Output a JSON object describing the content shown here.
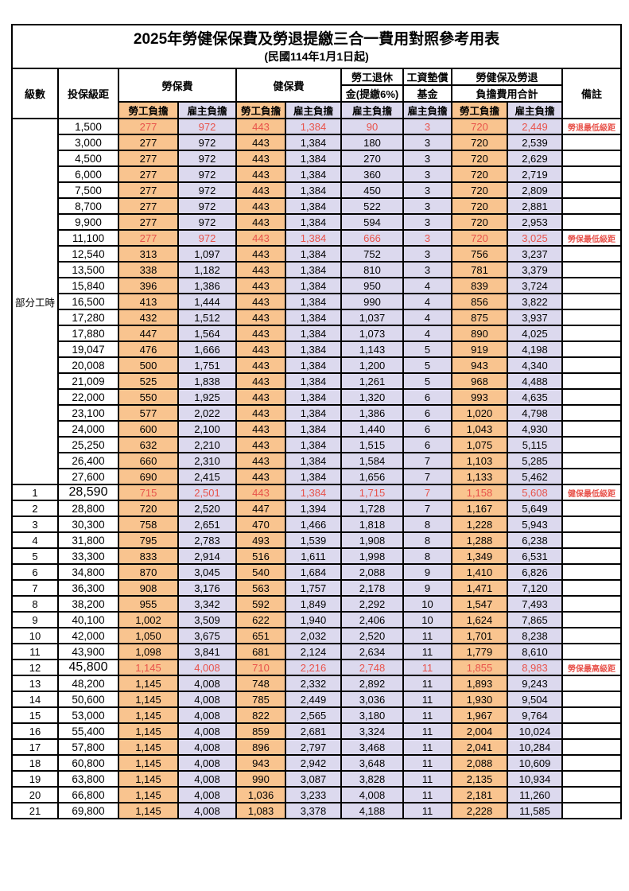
{
  "title": "2025年勞健保保費及勞退提繳三合一費用對照參考用表",
  "subtitle": "(民國114年1月1日起)",
  "columns": {
    "level": "級數",
    "bracket": "投保級距",
    "labor_insurance": "勞保費",
    "health_insurance": "健保費",
    "pension_line1": "勞工退休",
    "pension_line2": "金(提繳6%)",
    "wage_fund_line1": "工資墊償",
    "wage_fund_line2": "基金",
    "total_line1": "勞健保及勞退",
    "total_line2": "負擔費用合計",
    "remark": "備註",
    "employee": "勞工負擔",
    "employer": "雇主負擔"
  },
  "part_time_label": "部分工時",
  "part_time_span": 23,
  "colors": {
    "employee_bg": "#f9c48f",
    "employer_bg": "#dcd9ee",
    "highlight_text": "#e8534b",
    "border": "#000000"
  },
  "rows": [
    {
      "level": null,
      "bracket": "1,500",
      "li_emp": "277",
      "li_er": "972",
      "hi_emp": "443",
      "hi_er": "1,384",
      "pension": "90",
      "fund": "3",
      "total_emp": "720",
      "total_er": "2,449",
      "remark": "勞退最低級距",
      "highlight": true,
      "big": false
    },
    {
      "level": null,
      "bracket": "3,000",
      "li_emp": "277",
      "li_er": "972",
      "hi_emp": "443",
      "hi_er": "1,384",
      "pension": "180",
      "fund": "3",
      "total_emp": "720",
      "total_er": "2,539",
      "remark": "",
      "highlight": false,
      "big": false
    },
    {
      "level": null,
      "bracket": "4,500",
      "li_emp": "277",
      "li_er": "972",
      "hi_emp": "443",
      "hi_er": "1,384",
      "pension": "270",
      "fund": "3",
      "total_emp": "720",
      "total_er": "2,629",
      "remark": "",
      "highlight": false,
      "big": false
    },
    {
      "level": null,
      "bracket": "6,000",
      "li_emp": "277",
      "li_er": "972",
      "hi_emp": "443",
      "hi_er": "1,384",
      "pension": "360",
      "fund": "3",
      "total_emp": "720",
      "total_er": "2,719",
      "remark": "",
      "highlight": false,
      "big": false
    },
    {
      "level": null,
      "bracket": "7,500",
      "li_emp": "277",
      "li_er": "972",
      "hi_emp": "443",
      "hi_er": "1,384",
      "pension": "450",
      "fund": "3",
      "total_emp": "720",
      "total_er": "2,809",
      "remark": "",
      "highlight": false,
      "big": false
    },
    {
      "level": null,
      "bracket": "8,700",
      "li_emp": "277",
      "li_er": "972",
      "hi_emp": "443",
      "hi_er": "1,384",
      "pension": "522",
      "fund": "3",
      "total_emp": "720",
      "total_er": "2,881",
      "remark": "",
      "highlight": false,
      "big": false
    },
    {
      "level": null,
      "bracket": "9,900",
      "li_emp": "277",
      "li_er": "972",
      "hi_emp": "443",
      "hi_er": "1,384",
      "pension": "594",
      "fund": "3",
      "total_emp": "720",
      "total_er": "2,953",
      "remark": "",
      "highlight": false,
      "big": false
    },
    {
      "level": null,
      "bracket": "11,100",
      "li_emp": "277",
      "li_er": "972",
      "hi_emp": "443",
      "hi_er": "1,384",
      "pension": "666",
      "fund": "3",
      "total_emp": "720",
      "total_er": "3,025",
      "remark": "勞保最低級距",
      "highlight": true,
      "big": false
    },
    {
      "level": null,
      "bracket": "12,540",
      "li_emp": "313",
      "li_er": "1,097",
      "hi_emp": "443",
      "hi_er": "1,384",
      "pension": "752",
      "fund": "3",
      "total_emp": "756",
      "total_er": "3,237",
      "remark": "",
      "highlight": false,
      "big": false
    },
    {
      "level": null,
      "bracket": "13,500",
      "li_emp": "338",
      "li_er": "1,182",
      "hi_emp": "443",
      "hi_er": "1,384",
      "pension": "810",
      "fund": "3",
      "total_emp": "781",
      "total_er": "3,379",
      "remark": "",
      "highlight": false,
      "big": false
    },
    {
      "level": null,
      "bracket": "15,840",
      "li_emp": "396",
      "li_er": "1,386",
      "hi_emp": "443",
      "hi_er": "1,384",
      "pension": "950",
      "fund": "4",
      "total_emp": "839",
      "total_er": "3,724",
      "remark": "",
      "highlight": false,
      "big": false
    },
    {
      "level": null,
      "bracket": "16,500",
      "li_emp": "413",
      "li_er": "1,444",
      "hi_emp": "443",
      "hi_er": "1,384",
      "pension": "990",
      "fund": "4",
      "total_emp": "856",
      "total_er": "3,822",
      "remark": "",
      "highlight": false,
      "big": false
    },
    {
      "level": null,
      "bracket": "17,280",
      "li_emp": "432",
      "li_er": "1,512",
      "hi_emp": "443",
      "hi_er": "1,384",
      "pension": "1,037",
      "fund": "4",
      "total_emp": "875",
      "total_er": "3,937",
      "remark": "",
      "highlight": false,
      "big": false
    },
    {
      "level": null,
      "bracket": "17,880",
      "li_emp": "447",
      "li_er": "1,564",
      "hi_emp": "443",
      "hi_er": "1,384",
      "pension": "1,073",
      "fund": "4",
      "total_emp": "890",
      "total_er": "4,025",
      "remark": "",
      "highlight": false,
      "big": false
    },
    {
      "level": null,
      "bracket": "19,047",
      "li_emp": "476",
      "li_er": "1,666",
      "hi_emp": "443",
      "hi_er": "1,384",
      "pension": "1,143",
      "fund": "5",
      "total_emp": "919",
      "total_er": "4,198",
      "remark": "",
      "highlight": false,
      "big": false
    },
    {
      "level": null,
      "bracket": "20,008",
      "li_emp": "500",
      "li_er": "1,751",
      "hi_emp": "443",
      "hi_er": "1,384",
      "pension": "1,200",
      "fund": "5",
      "total_emp": "943",
      "total_er": "4,340",
      "remark": "",
      "highlight": false,
      "big": false
    },
    {
      "level": null,
      "bracket": "21,009",
      "li_emp": "525",
      "li_er": "1,838",
      "hi_emp": "443",
      "hi_er": "1,384",
      "pension": "1,261",
      "fund": "5",
      "total_emp": "968",
      "total_er": "4,488",
      "remark": "",
      "highlight": false,
      "big": false
    },
    {
      "level": null,
      "bracket": "22,000",
      "li_emp": "550",
      "li_er": "1,925",
      "hi_emp": "443",
      "hi_er": "1,384",
      "pension": "1,320",
      "fund": "6",
      "total_emp": "993",
      "total_er": "4,635",
      "remark": "",
      "highlight": false,
      "big": false
    },
    {
      "level": null,
      "bracket": "23,100",
      "li_emp": "577",
      "li_er": "2,022",
      "hi_emp": "443",
      "hi_er": "1,384",
      "pension": "1,386",
      "fund": "6",
      "total_emp": "1,020",
      "total_er": "4,798",
      "remark": "",
      "highlight": false,
      "big": false
    },
    {
      "level": null,
      "bracket": "24,000",
      "li_emp": "600",
      "li_er": "2,100",
      "hi_emp": "443",
      "hi_er": "1,384",
      "pension": "1,440",
      "fund": "6",
      "total_emp": "1,043",
      "total_er": "4,930",
      "remark": "",
      "highlight": false,
      "big": false
    },
    {
      "level": null,
      "bracket": "25,250",
      "li_emp": "632",
      "li_er": "2,210",
      "hi_emp": "443",
      "hi_er": "1,384",
      "pension": "1,515",
      "fund": "6",
      "total_emp": "1,075",
      "total_er": "5,115",
      "remark": "",
      "highlight": false,
      "big": false
    },
    {
      "level": null,
      "bracket": "26,400",
      "li_emp": "660",
      "li_er": "2,310",
      "hi_emp": "443",
      "hi_er": "1,384",
      "pension": "1,584",
      "fund": "7",
      "total_emp": "1,103",
      "total_er": "5,285",
      "remark": "",
      "highlight": false,
      "big": false
    },
    {
      "level": null,
      "bracket": "27,600",
      "li_emp": "690",
      "li_er": "2,415",
      "hi_emp": "443",
      "hi_er": "1,384",
      "pension": "1,656",
      "fund": "7",
      "total_emp": "1,133",
      "total_er": "5,462",
      "remark": "",
      "highlight": false,
      "big": false
    },
    {
      "level": "1",
      "bracket": "28,590",
      "li_emp": "715",
      "li_er": "2,501",
      "hi_emp": "443",
      "hi_er": "1,384",
      "pension": "1,715",
      "fund": "7",
      "total_emp": "1,158",
      "total_er": "5,608",
      "remark": "健保最低級距",
      "highlight": true,
      "big": true
    },
    {
      "level": "2",
      "bracket": "28,800",
      "li_emp": "720",
      "li_er": "2,520",
      "hi_emp": "447",
      "hi_er": "1,394",
      "pension": "1,728",
      "fund": "7",
      "total_emp": "1,167",
      "total_er": "5,649",
      "remark": "",
      "highlight": false,
      "big": false
    },
    {
      "level": "3",
      "bracket": "30,300",
      "li_emp": "758",
      "li_er": "2,651",
      "hi_emp": "470",
      "hi_er": "1,466",
      "pension": "1,818",
      "fund": "8",
      "total_emp": "1,228",
      "total_er": "5,943",
      "remark": "",
      "highlight": false,
      "big": false
    },
    {
      "level": "4",
      "bracket": "31,800",
      "li_emp": "795",
      "li_er": "2,783",
      "hi_emp": "493",
      "hi_er": "1,539",
      "pension": "1,908",
      "fund": "8",
      "total_emp": "1,288",
      "total_er": "6,238",
      "remark": "",
      "highlight": false,
      "big": false
    },
    {
      "level": "5",
      "bracket": "33,300",
      "li_emp": "833",
      "li_er": "2,914",
      "hi_emp": "516",
      "hi_er": "1,611",
      "pension": "1,998",
      "fund": "8",
      "total_emp": "1,349",
      "total_er": "6,531",
      "remark": "",
      "highlight": false,
      "big": false
    },
    {
      "level": "6",
      "bracket": "34,800",
      "li_emp": "870",
      "li_er": "3,045",
      "hi_emp": "540",
      "hi_er": "1,684",
      "pension": "2,088",
      "fund": "9",
      "total_emp": "1,410",
      "total_er": "6,826",
      "remark": "",
      "highlight": false,
      "big": false
    },
    {
      "level": "7",
      "bracket": "36,300",
      "li_emp": "908",
      "li_er": "3,176",
      "hi_emp": "563",
      "hi_er": "1,757",
      "pension": "2,178",
      "fund": "9",
      "total_emp": "1,471",
      "total_er": "7,120",
      "remark": "",
      "highlight": false,
      "big": false
    },
    {
      "level": "8",
      "bracket": "38,200",
      "li_emp": "955",
      "li_er": "3,342",
      "hi_emp": "592",
      "hi_er": "1,849",
      "pension": "2,292",
      "fund": "10",
      "total_emp": "1,547",
      "total_er": "7,493",
      "remark": "",
      "highlight": false,
      "big": false
    },
    {
      "level": "9",
      "bracket": "40,100",
      "li_emp": "1,002",
      "li_er": "3,509",
      "hi_emp": "622",
      "hi_er": "1,940",
      "pension": "2,406",
      "fund": "10",
      "total_emp": "1,624",
      "total_er": "7,865",
      "remark": "",
      "highlight": false,
      "big": false
    },
    {
      "level": "10",
      "bracket": "42,000",
      "li_emp": "1,050",
      "li_er": "3,675",
      "hi_emp": "651",
      "hi_er": "2,032",
      "pension": "2,520",
      "fund": "11",
      "total_emp": "1,701",
      "total_er": "8,238",
      "remark": "",
      "highlight": false,
      "big": false
    },
    {
      "level": "11",
      "bracket": "43,900",
      "li_emp": "1,098",
      "li_er": "3,841",
      "hi_emp": "681",
      "hi_er": "2,124",
      "pension": "2,634",
      "fund": "11",
      "total_emp": "1,779",
      "total_er": "8,610",
      "remark": "",
      "highlight": false,
      "big": false
    },
    {
      "level": "12",
      "bracket": "45,800",
      "li_emp": "1,145",
      "li_er": "4,008",
      "hi_emp": "710",
      "hi_er": "2,216",
      "pension": "2,748",
      "fund": "11",
      "total_emp": "1,855",
      "total_er": "8,983",
      "remark": "勞保最高級距",
      "highlight": true,
      "big": true
    },
    {
      "level": "13",
      "bracket": "48,200",
      "li_emp": "1,145",
      "li_er": "4,008",
      "hi_emp": "748",
      "hi_er": "2,332",
      "pension": "2,892",
      "fund": "11",
      "total_emp": "1,893",
      "total_er": "9,243",
      "remark": "",
      "highlight": false,
      "big": false
    },
    {
      "level": "14",
      "bracket": "50,600",
      "li_emp": "1,145",
      "li_er": "4,008",
      "hi_emp": "785",
      "hi_er": "2,449",
      "pension": "3,036",
      "fund": "11",
      "total_emp": "1,930",
      "total_er": "9,504",
      "remark": "",
      "highlight": false,
      "big": false
    },
    {
      "level": "15",
      "bracket": "53,000",
      "li_emp": "1,145",
      "li_er": "4,008",
      "hi_emp": "822",
      "hi_er": "2,565",
      "pension": "3,180",
      "fund": "11",
      "total_emp": "1,967",
      "total_er": "9,764",
      "remark": "",
      "highlight": false,
      "big": false
    },
    {
      "level": "16",
      "bracket": "55,400",
      "li_emp": "1,145",
      "li_er": "4,008",
      "hi_emp": "859",
      "hi_er": "2,681",
      "pension": "3,324",
      "fund": "11",
      "total_emp": "2,004",
      "total_er": "10,024",
      "remark": "",
      "highlight": false,
      "big": false
    },
    {
      "level": "17",
      "bracket": "57,800",
      "li_emp": "1,145",
      "li_er": "4,008",
      "hi_emp": "896",
      "hi_er": "2,797",
      "pension": "3,468",
      "fund": "11",
      "total_emp": "2,041",
      "total_er": "10,284",
      "remark": "",
      "highlight": false,
      "big": false
    },
    {
      "level": "18",
      "bracket": "60,800",
      "li_emp": "1,145",
      "li_er": "4,008",
      "hi_emp": "943",
      "hi_er": "2,942",
      "pension": "3,648",
      "fund": "11",
      "total_emp": "2,088",
      "total_er": "10,609",
      "remark": "",
      "highlight": false,
      "big": false
    },
    {
      "level": "19",
      "bracket": "63,800",
      "li_emp": "1,145",
      "li_er": "4,008",
      "hi_emp": "990",
      "hi_er": "3,087",
      "pension": "3,828",
      "fund": "11",
      "total_emp": "2,135",
      "total_er": "10,934",
      "remark": "",
      "highlight": false,
      "big": false
    },
    {
      "level": "20",
      "bracket": "66,800",
      "li_emp": "1,145",
      "li_er": "4,008",
      "hi_emp": "1,036",
      "hi_er": "3,233",
      "pension": "4,008",
      "fund": "11",
      "total_emp": "2,181",
      "total_er": "11,260",
      "remark": "",
      "highlight": false,
      "big": false
    },
    {
      "level": "21",
      "bracket": "69,800",
      "li_emp": "1,145",
      "li_er": "4,008",
      "hi_emp": "1,083",
      "hi_er": "3,378",
      "pension": "4,188",
      "fund": "11",
      "total_emp": "2,228",
      "total_er": "11,585",
      "remark": "",
      "highlight": false,
      "big": false
    }
  ]
}
